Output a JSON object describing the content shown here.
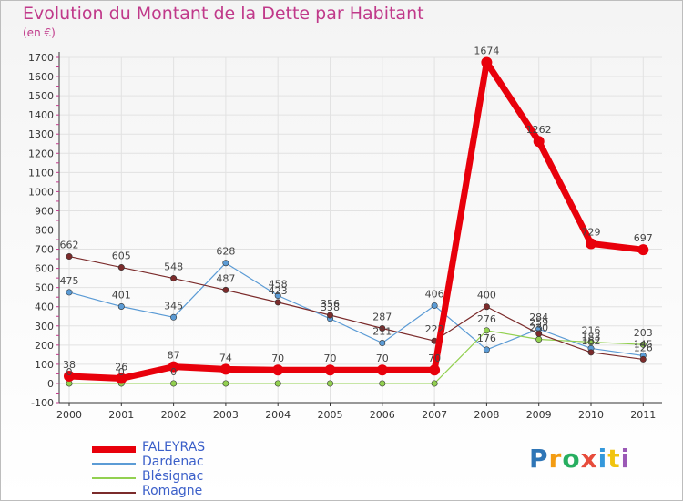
{
  "title": "Evolution du Montant de la Dette par Habitant",
  "subtitle": "(en €)",
  "logo_text": "Proxiti",
  "colors": {
    "title": "#c0398a",
    "background_gradient_start": "#f2f2f2",
    "grid": "#e4e4e4",
    "axis": "#333333",
    "legend_text": "#3b5fc9"
  },
  "chart_data": {
    "type": "line",
    "title": "Evolution du Montant de la Dette par Habitant",
    "subtitle": "(en €)",
    "x": [
      "2000",
      "2001",
      "2002",
      "2003",
      "2004",
      "2005",
      "2006",
      "2007",
      "2008",
      "2009",
      "2010",
      "2011"
    ],
    "ylim": [
      -100,
      1700
    ],
    "yticks": [
      -100,
      0,
      100,
      200,
      300,
      400,
      500,
      600,
      700,
      800,
      900,
      1000,
      1100,
      1200,
      1300,
      1400,
      1500,
      1600,
      1700
    ],
    "grid": true,
    "legend_position": "bottom-left",
    "series": [
      {
        "name": "FALEYRAS",
        "color": "#e8000b",
        "width": 7,
        "values": [
          38,
          26,
          87,
          74,
          70,
          70,
          70,
          70,
          1674,
          1262,
          729,
          697
        ],
        "labels": [
          "38",
          "26",
          "87",
          "74",
          "70",
          "70",
          "70",
          "70",
          "1674",
          "1262",
          "729",
          "697"
        ]
      },
      {
        "name": "Dardenac",
        "color": "#5b9bd5",
        "width": 1.2,
        "values": [
          475,
          401,
          345,
          628,
          458,
          338,
          211,
          406,
          176,
          284,
          183,
          145
        ],
        "labels": [
          "475",
          "401",
          "345",
          "628",
          "458",
          "338",
          "211",
          "406",
          "176",
          "284",
          "183",
          "145"
        ]
      },
      {
        "name": "Blésignac",
        "color": "#92d050",
        "width": 1.2,
        "values": [
          0,
          0,
          0,
          0,
          0,
          0,
          0,
          0,
          276,
          230,
          216,
          203
        ],
        "labels": [
          "0",
          "0",
          "0",
          "",
          "",
          "",
          "",
          "",
          "276",
          "230",
          "216",
          "203"
        ]
      },
      {
        "name": "Romagne",
        "color": "#7b2b2b",
        "width": 1.2,
        "values": [
          662,
          605,
          548,
          487,
          423,
          356,
          287,
          222,
          400,
          259,
          162,
          126
        ],
        "labels": [
          "662",
          "605",
          "548",
          "487",
          "423",
          "356",
          "287",
          "222",
          "400",
          "259",
          "162",
          "126"
        ]
      }
    ]
  }
}
